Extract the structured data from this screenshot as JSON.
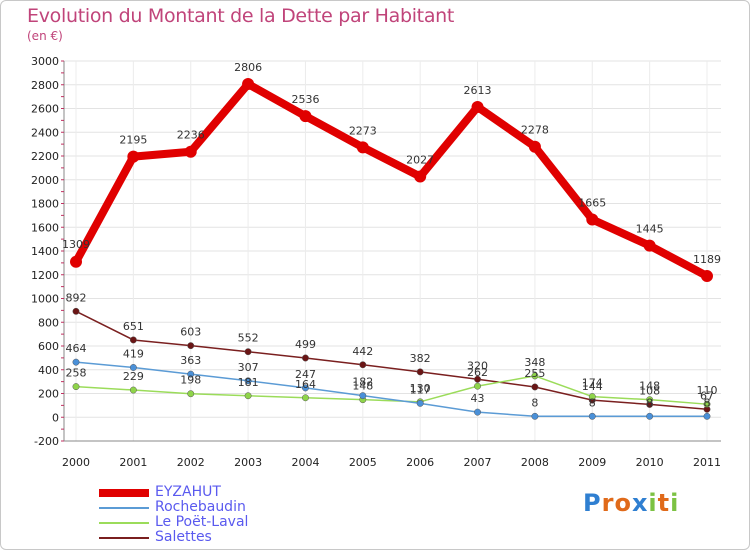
{
  "chart_data": {
    "type": "line",
    "title": "Evolution du Montant de la Dette par Habitant",
    "subtitle": "(en €)",
    "categories": [
      "2000",
      "2001",
      "2002",
      "2003",
      "2004",
      "2005",
      "2006",
      "2007",
      "2008",
      "2009",
      "2010",
      "2011"
    ],
    "ylim": [
      -200,
      3000
    ],
    "y_ticks": [
      "-200",
      "0",
      "200",
      "400",
      "600",
      "800",
      "1000",
      "1200",
      "1400",
      "1600",
      "1800",
      "2000",
      "2200",
      "2400",
      "2600",
      "2800",
      "3000"
    ],
    "grid": true,
    "legend_position": "bottom-left",
    "series": [
      {
        "name": "EYZAHUT",
        "color": "#e00000",
        "values": [
          1309,
          2195,
          2236,
          2806,
          2536,
          2273,
          2027,
          2613,
          2278,
          1665,
          1445,
          1189
        ]
      },
      {
        "name": "Rochebaudin",
        "color": "#5b9bd5",
        "values": [
          464,
          419,
          363,
          307,
          247,
          182,
          117,
          43,
          8,
          8,
          8,
          8
        ]
      },
      {
        "name": "Le Poët-Laval",
        "color": "#9bdc5a",
        "values": [
          258,
          229,
          198,
          181,
          164,
          148,
          130,
          262,
          348,
          174,
          148,
          110
        ]
      },
      {
        "name": "Salettes",
        "color": "#7a1f1f",
        "values": [
          892,
          651,
          603,
          552,
          499,
          442,
          382,
          320,
          255,
          144,
          108,
          67
        ]
      }
    ]
  },
  "logo": {
    "letters": [
      "P",
      "r",
      "o",
      "x",
      "i",
      "t",
      "i"
    ],
    "colors": [
      "#2f7fd1",
      "#e06a1a",
      "#e06a1a",
      "#2f7fd1",
      "#7cc243",
      "#e06a1a",
      "#7cc243"
    ]
  }
}
